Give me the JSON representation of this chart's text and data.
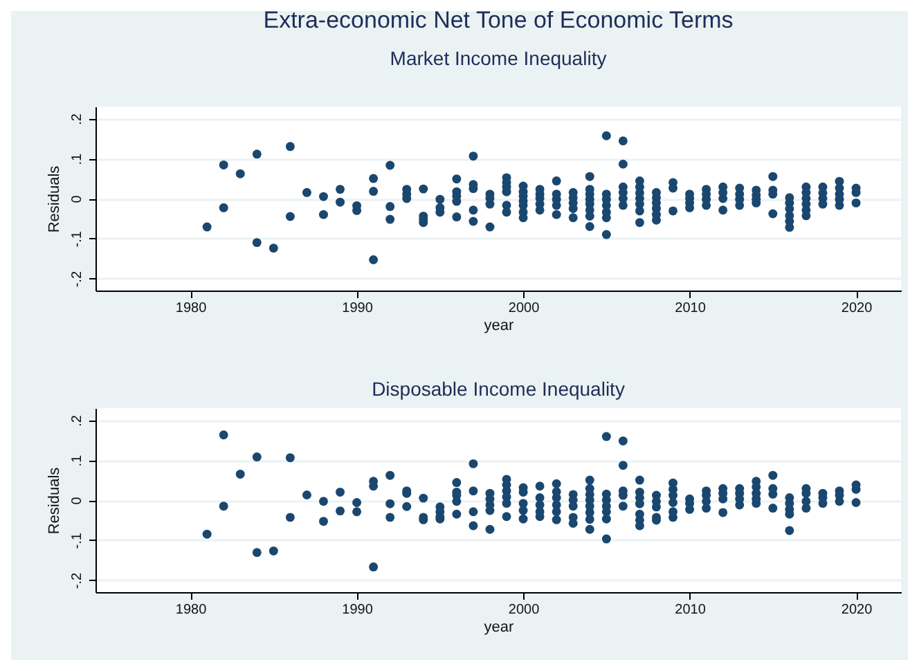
{
  "chart_data": [
    {
      "type": "scatter",
      "title": "Extra-economic Net Tone  of Economic Terms",
      "subtitle": "Market Income Inequality",
      "xlabel": "year",
      "ylabel": "Residuals",
      "color": "#1a476f",
      "marker": "circle",
      "grid": "y",
      "xlim": [
        1974.3,
        2022.7
      ],
      "xticks": [
        1980,
        1990,
        2000,
        2010,
        2020
      ],
      "ylim": [
        -0.23,
        0.23
      ],
      "yticks": [
        {
          "value": -0.2,
          "label": "-.2"
        },
        {
          "value": -0.1,
          "label": "-.1"
        },
        0,
        {
          "value": 0.1,
          "label": ".1"
        },
        {
          "value": 0.2,
          "label": ".2"
        }
      ],
      "x": [
        1981,
        1982,
        1982,
        1983,
        1984,
        1984,
        1985,
        1986,
        1986,
        1987,
        1988,
        1988,
        1989,
        1989,
        1990,
        1990,
        1991,
        1991,
        1991,
        1992,
        1992,
        1992,
        1993,
        1993,
        1993,
        1994,
        1994,
        1994,
        1994,
        1995,
        1995,
        1995,
        1996,
        1996,
        1996,
        1996,
        1996,
        1997,
        1997,
        1997,
        1997,
        1997,
        1998,
        1998,
        1998,
        1998,
        1999,
        1999,
        1999,
        1999,
        1999,
        1999,
        2000,
        2000,
        2000,
        2000,
        2000,
        2000,
        2000,
        2001,
        2001,
        2001,
        2001,
        2001,
        2002,
        2002,
        2002,
        2002,
        2002,
        2003,
        2003,
        2003,
        2003,
        2003,
        2004,
        2004,
        2004,
        2004,
        2004,
        2004,
        2004,
        2004,
        2005,
        2005,
        2005,
        2005,
        2005,
        2005,
        2005,
        2006,
        2006,
        2006,
        2006,
        2006,
        2006,
        2007,
        2007,
        2007,
        2007,
        2007,
        2007,
        2007,
        2008,
        2008,
        2008,
        2008,
        2008,
        2008,
        2009,
        2009,
        2009,
        2010,
        2010,
        2010,
        2010,
        2011,
        2011,
        2011,
        2011,
        2012,
        2012,
        2012,
        2012,
        2013,
        2013,
        2013,
        2013,
        2014,
        2014,
        2014,
        2014,
        2015,
        2015,
        2015,
        2015,
        2016,
        2016,
        2016,
        2016,
        2016,
        2016,
        2017,
        2017,
        2017,
        2017,
        2017,
        2017,
        2018,
        2018,
        2018,
        2018,
        2019,
        2019,
        2019,
        2019,
        2019,
        2020,
        2020,
        2020
      ],
      "values": [
        -0.071,
        0.084,
        -0.023,
        0.062,
        0.111,
        -0.11,
        -0.124,
        0.13,
        -0.045,
        0.015,
        0.005,
        -0.04,
        0.023,
        -0.009,
        -0.018,
        -0.03,
        0.05,
        0.018,
        -0.153,
        0.083,
        -0.02,
        -0.052,
        0.023,
        0.011,
        0,
        0.024,
        -0.044,
        -0.052,
        -0.06,
        -0.002,
        -0.023,
        -0.034,
        0.049,
        0.017,
        0.006,
        -0.007,
        -0.046,
        0.106,
        0.035,
        0.025,
        -0.029,
        -0.057,
        0.011,
        0,
        -0.014,
        -0.071,
        0.052,
        0.04,
        0.029,
        0.017,
        -0.017,
        -0.034,
        0.031,
        0.017,
        0.006,
        -0.006,
        -0.017,
        -0.034,
        -0.048,
        0.023,
        0.011,
        0,
        -0.014,
        -0.029,
        0.044,
        0.011,
        -0.002,
        -0.017,
        -0.04,
        0.015,
        0.002,
        -0.011,
        -0.025,
        -0.048,
        0.055,
        0.023,
        0.011,
        -0.002,
        -0.014,
        -0.029,
        -0.044,
        -0.07,
        0.157,
        0.011,
        -0.002,
        -0.017,
        -0.034,
        -0.048,
        -0.09,
        0.144,
        0.086,
        0.029,
        0.015,
        0,
        -0.017,
        0.044,
        0.029,
        0.014,
        0,
        -0.014,
        -0.031,
        -0.06,
        0.015,
        0.002,
        -0.011,
        -0.025,
        -0.04,
        -0.054,
        0.04,
        0.026,
        -0.031,
        0.011,
        0,
        -0.011,
        -0.023,
        0.023,
        0.011,
        -0.002,
        -0.017,
        0.029,
        0.015,
        0,
        -0.029,
        0.026,
        0.011,
        -0.002,
        -0.017,
        0.021,
        0.009,
        -0.002,
        -0.011,
        0.055,
        0.021,
        0.011,
        -0.038,
        0.002,
        -0.011,
        -0.026,
        -0.043,
        -0.057,
        -0.072,
        0.029,
        0.015,
        0,
        -0.014,
        -0.029,
        -0.043,
        0.029,
        0.014,
        0,
        -0.014,
        0.043,
        0.026,
        0.011,
        -0.002,
        -0.017,
        0.026,
        0.015,
        -0.011
      ]
    },
    {
      "type": "scatter",
      "title": "Disposable Income Inequality",
      "xlabel": "year",
      "ylabel": "Residuals",
      "color": "#1a476f",
      "marker": "circle",
      "grid": "y",
      "xlim": [
        1974.3,
        2022.7
      ],
      "xticks": [
        1980,
        1990,
        2000,
        2010,
        2020
      ],
      "ylim": [
        -0.23,
        0.23
      ],
      "yticks": [
        {
          "value": -0.2,
          "label": "-.2"
        },
        {
          "value": -0.1,
          "label": "-.1"
        },
        0,
        {
          "value": 0.1,
          "label": ".1"
        },
        {
          "value": 0.2,
          "label": ".2"
        }
      ],
      "x": [
        1981,
        1982,
        1982,
        1983,
        1984,
        1984,
        1985,
        1986,
        1986,
        1987,
        1988,
        1988,
        1989,
        1989,
        1990,
        1990,
        1991,
        1991,
        1991,
        1992,
        1992,
        1992,
        1993,
        1993,
        1993,
        1994,
        1994,
        1994,
        1995,
        1995,
        1995,
        1995,
        1996,
        1996,
        1996,
        1996,
        1996,
        1997,
        1997,
        1997,
        1997,
        1998,
        1998,
        1998,
        1998,
        1998,
        1999,
        1999,
        1999,
        1999,
        1999,
        1999,
        2000,
        2000,
        2000,
        2000,
        2000,
        2001,
        2001,
        2001,
        2001,
        2001,
        2002,
        2002,
        2002,
        2002,
        2002,
        2002,
        2003,
        2003,
        2003,
        2003,
        2003,
        2004,
        2004,
        2004,
        2004,
        2004,
        2004,
        2004,
        2004,
        2005,
        2005,
        2005,
        2005,
        2005,
        2005,
        2005,
        2006,
        2006,
        2006,
        2006,
        2006,
        2007,
        2007,
        2007,
        2007,
        2007,
        2007,
        2007,
        2008,
        2008,
        2008,
        2008,
        2008,
        2009,
        2009,
        2009,
        2009,
        2009,
        2009,
        2010,
        2010,
        2010,
        2011,
        2011,
        2011,
        2011,
        2012,
        2012,
        2012,
        2012,
        2013,
        2013,
        2013,
        2013,
        2014,
        2014,
        2014,
        2014,
        2014,
        2015,
        2015,
        2015,
        2015,
        2016,
        2016,
        2016,
        2016,
        2016,
        2017,
        2017,
        2017,
        2017,
        2018,
        2018,
        2018,
        2019,
        2019,
        2019,
        2020,
        2020,
        2020
      ],
      "values": [
        -0.085,
        0.163,
        -0.015,
        0.065,
        0.108,
        -0.131,
        -0.127,
        0.106,
        -0.043,
        0.013,
        -0.003,
        -0.053,
        0.02,
        -0.027,
        -0.006,
        -0.029,
        0.047,
        0.035,
        -0.167,
        0.062,
        -0.009,
        -0.043,
        0.023,
        0.017,
        -0.016,
        0.005,
        -0.043,
        -0.049,
        -0.017,
        -0.029,
        -0.041,
        -0.047,
        0.044,
        0.02,
        0.012,
        -0.003,
        -0.035,
        0.091,
        0.023,
        -0.029,
        -0.064,
        0.017,
        0.003,
        -0.012,
        -0.026,
        -0.073,
        0.052,
        0.038,
        0.023,
        0.008,
        -0.008,
        -0.041,
        0.031,
        0.02,
        -0.008,
        -0.026,
        -0.047,
        0.035,
        0.006,
        -0.012,
        -0.029,
        -0.041,
        0.041,
        0.021,
        0.006,
        -0.012,
        -0.029,
        -0.049,
        0.014,
        0,
        -0.015,
        -0.043,
        -0.058,
        0.05,
        0.029,
        0.014,
        0,
        -0.015,
        -0.031,
        -0.048,
        -0.073,
        0.159,
        0.015,
        0,
        -0.015,
        -0.029,
        -0.047,
        -0.097,
        0.148,
        0.087,
        0.023,
        0.012,
        -0.015,
        0.05,
        0.02,
        0.006,
        -0.009,
        -0.035,
        -0.05,
        -0.064,
        0.012,
        -0.003,
        -0.017,
        -0.043,
        -0.05,
        0.043,
        0.027,
        0.012,
        -0.006,
        -0.029,
        -0.043,
        0.003,
        -0.008,
        -0.023,
        0.023,
        0.012,
        -0.003,
        -0.02,
        0.029,
        0.017,
        0.003,
        -0.031,
        0.029,
        0.017,
        0.003,
        -0.012,
        0.047,
        0.033,
        0.017,
        0.003,
        -0.008,
        0.062,
        0.029,
        0.015,
        -0.02,
        0.006,
        -0.008,
        -0.023,
        -0.035,
        -0.076,
        0.029,
        0.017,
        -0.003,
        -0.02,
        0.017,
        0.006,
        -0.008,
        0.023,
        0.012,
        -0.003,
        0.038,
        0.027,
        -0.006
      ]
    }
  ]
}
